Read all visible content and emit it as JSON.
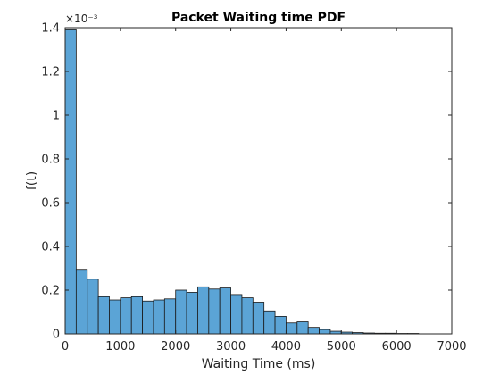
{
  "chart_data": {
    "type": "bar",
    "title": "Packet Waiting time PDF",
    "xlabel": "Waiting Time (ms)",
    "ylabel": "f(t)",
    "y_exponent_label": "×10⁻³",
    "y_scale_factor": 0.001,
    "xlim": [
      0,
      7000
    ],
    "ylim": [
      0,
      1.4
    ],
    "xticks": [
      0,
      1000,
      2000,
      3000,
      4000,
      5000,
      6000,
      7000
    ],
    "xtick_labels": [
      "0",
      "1000",
      "2000",
      "3000",
      "4000",
      "5000",
      "6000",
      "7000"
    ],
    "yticks": [
      0,
      0.2,
      0.4,
      0.6,
      0.8,
      1.0,
      1.2,
      1.4
    ],
    "ytick_labels": [
      "0",
      "0.2",
      "0.4",
      "0.6",
      "0.8",
      "1",
      "1.2",
      "1.4"
    ],
    "grid": false,
    "bar_color": "#5ba4d6",
    "bar_edge_color": "#1a1a1a",
    "bin_edges": [
      0,
      200,
      400,
      600,
      800,
      1000,
      1200,
      1400,
      1600,
      1800,
      2000,
      2200,
      2400,
      2600,
      2800,
      3000,
      3200,
      3400,
      3600,
      3800,
      4000,
      4200,
      4400,
      4600,
      4800,
      5000,
      5200,
      5400,
      5600,
      5800,
      6000,
      6200,
      6400
    ],
    "values": [
      1.39,
      0.295,
      0.25,
      0.17,
      0.155,
      0.165,
      0.17,
      0.15,
      0.155,
      0.16,
      0.2,
      0.19,
      0.215,
      0.205,
      0.21,
      0.18,
      0.165,
      0.145,
      0.105,
      0.08,
      0.05,
      0.055,
      0.03,
      0.02,
      0.012,
      0.008,
      0.006,
      0.004,
      0.003,
      0.003,
      0.002,
      0.002
    ]
  }
}
